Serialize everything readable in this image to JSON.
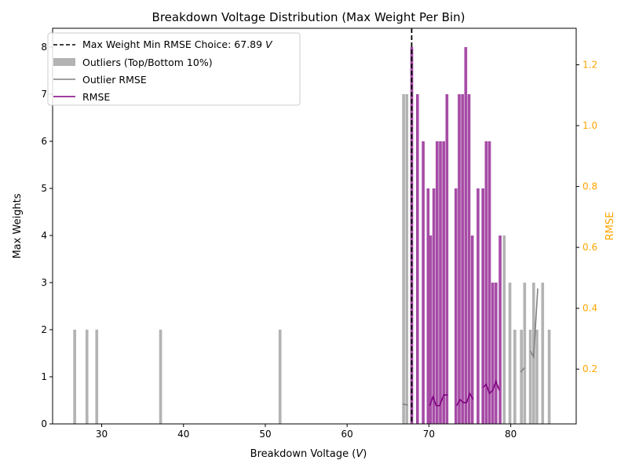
{
  "chart_data": {
    "type": "bar",
    "title": "Breakdown Voltage Distribution (Max Weight Per Bin)",
    "xlabel": "Breakdown Voltage (",
    "xlabel_unit": "V",
    "xlabel_close": ")",
    "ylabel": "Max Weights",
    "ylabel_right": "RMSE",
    "xlim": [
      24,
      88
    ],
    "ylim": [
      0,
      8.4
    ],
    "ylim_right": [
      0.02,
      1.32
    ],
    "xticks": [
      30,
      40,
      50,
      60,
      70,
      80
    ],
    "yticks": [
      0,
      1,
      2,
      3,
      4,
      5,
      6,
      7,
      8
    ],
    "yticks_right": [
      0.2,
      0.4,
      0.6,
      0.8,
      1.0,
      1.2
    ],
    "bar_width": 0.35,
    "colors": {
      "outlier_bar": "#b3b3b3",
      "main_bar": "#a64ca6",
      "rmse_line": "#800080",
      "outlier_rmse_line": "#808080",
      "choice_line": "#000000",
      "right_axis": "#ffa500"
    },
    "legend": {
      "position": "top-left",
      "entries": [
        {
          "label": "Max Weight Min RMSE Choice: 67.89 ",
          "label_unit": "V",
          "style": "dashed-line"
        },
        {
          "label": "Outliers (Top/Bottom 10%)",
          "style": "patch-gray"
        },
        {
          "label": "Outlier RMSE",
          "style": "line-gray"
        },
        {
          "label": "RMSE",
          "style": "line-purple"
        }
      ]
    },
    "choice_x": 67.89,
    "series": [
      {
        "name": "Outliers (Top/Bottom 10%)",
        "kind": "outlier",
        "x": [
          26.7,
          28.2,
          29.4,
          37.2,
          51.8,
          66.9,
          67.3,
          79.2,
          79.9,
          80.5,
          81.3,
          81.7,
          82.4,
          82.8,
          83.2,
          83.9,
          84.7
        ],
        "values": [
          2,
          2,
          2,
          2,
          2,
          7,
          7,
          4,
          3,
          2,
          2,
          3,
          2,
          3,
          2,
          3,
          2
        ]
      },
      {
        "name": "Inliers",
        "kind": "main",
        "x": [
          67.9,
          68.6,
          69.3,
          69.9,
          70.2,
          70.6,
          71.0,
          71.4,
          71.8,
          72.2,
          73.3,
          73.7,
          74.1,
          74.5,
          74.9,
          75.3,
          76.0,
          76.6,
          77.0,
          77.4,
          77.8,
          78.2,
          78.7
        ],
        "values": [
          8,
          7,
          6,
          5,
          4,
          5,
          6,
          6,
          6,
          7,
          5,
          7,
          7,
          8,
          7,
          4,
          5,
          5,
          6,
          6,
          3,
          3,
          4
        ]
      },
      {
        "name": "Outlier RMSE",
        "kind": "outlier-rmse",
        "segments": [
          {
            "x": [
              66.8,
              67.4
            ],
            "y": [
              0.085,
              0.082
            ]
          },
          {
            "x": [
              81.2,
              81.7
            ],
            "y": [
              0.19,
              0.205
            ]
          },
          {
            "x": [
              82.4,
              82.8,
              83.3
            ],
            "y": [
              0.26,
              0.24,
              0.465
            ]
          }
        ]
      },
      {
        "name": "RMSE",
        "kind": "rmse",
        "segments": [
          {
            "x": [
              70.1,
              70.5,
              70.9,
              71.3,
              71.8,
              72.3
            ],
            "y": [
              0.08,
              0.11,
              0.08,
              0.08,
              0.115,
              0.115
            ]
          },
          {
            "x": [
              73.4,
              73.8,
              74.2,
              74.6,
              75.0,
              75.4
            ],
            "y": [
              0.08,
              0.1,
              0.09,
              0.09,
              0.12,
              0.1
            ]
          },
          {
            "x": [
              76.6,
              77.0,
              77.4,
              77.8,
              78.2,
              78.6
            ],
            "y": [
              0.14,
              0.15,
              0.12,
              0.13,
              0.16,
              0.13
            ]
          }
        ]
      }
    ]
  }
}
